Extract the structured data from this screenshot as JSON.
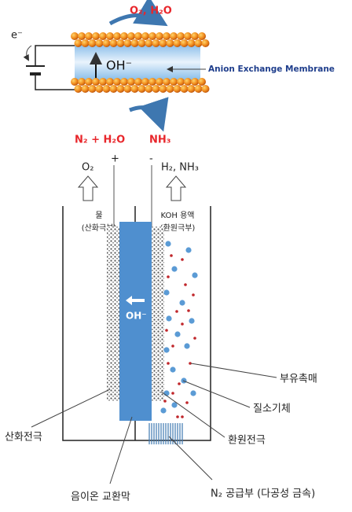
{
  "top": {
    "outlet": "O₂, H₂O",
    "electron": "e⁻",
    "ion": "OH⁻",
    "membrane_label": "Anion Exchange Membrane",
    "inlet": "N₂ + H₂O",
    "product": "NH₃"
  },
  "cell": {
    "anode_gas": "O₂",
    "plus": "+",
    "minus": "-",
    "cathode_gas": "H₂, NH₃",
    "anode_chamber": "물",
    "anode_chamber_sub": "(산화극부)",
    "cathode_chamber": "KOH 용액",
    "cathode_chamber_sub": "(환원극부)",
    "ion": "OH⁻",
    "catalyst": "부유촉매",
    "nitrogen": "질소기체",
    "anode": "산화전극",
    "cathode": "환원전극",
    "membrane": "음이온 교환막",
    "supply": "N₂ 공급부 (다공성 금속)"
  }
}
